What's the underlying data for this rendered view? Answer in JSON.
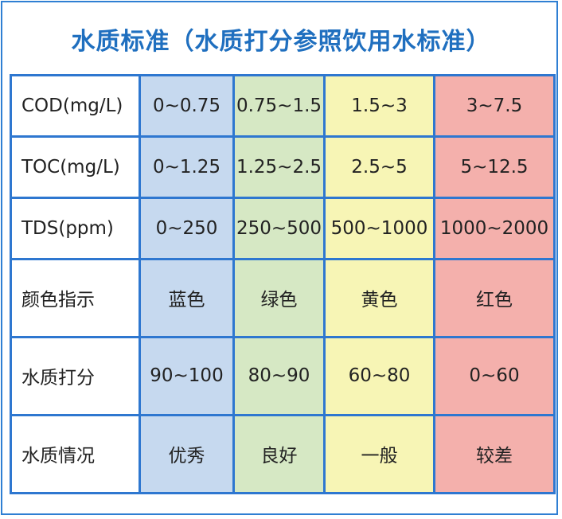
{
  "title": "水质标准（水质打分参照饮用水标准）",
  "colors": {
    "title": "#1f6fbf",
    "border": "#2e77d0",
    "blue_column": "#c6d9ef",
    "green_column": "#d6e8c4",
    "yellow_column": "#f7f5b5",
    "red_column": "#f4b0ac"
  },
  "table": {
    "rows": [
      {
        "label": "COD(mg/L)",
        "values": [
          "0~0.75",
          "0.75~1.5",
          "1.5~3",
          "3~7.5"
        ]
      },
      {
        "label": "TOC(mg/L)",
        "values": [
          "0~1.25",
          "1.25~2.5",
          "2.5~5",
          "5~12.5"
        ]
      },
      {
        "label": "TDS(ppm)",
        "values": [
          "0~250",
          "250~500",
          "500~1000",
          "1000~2000"
        ]
      },
      {
        "label": "颜色指示",
        "values": [
          "蓝色",
          "绿色",
          "黄色",
          "红色"
        ]
      },
      {
        "label": "水质打分",
        "values": [
          "90~100",
          "80~90",
          "60~80",
          "0~60"
        ]
      },
      {
        "label": "水质情况",
        "values": [
          "优秀",
          "良好",
          "一般",
          "较差"
        ]
      }
    ]
  }
}
